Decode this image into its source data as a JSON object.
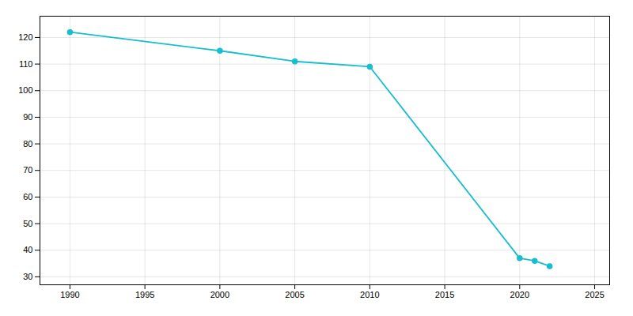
{
  "chart_data": {
    "type": "line",
    "x": [
      1990,
      2000,
      2005,
      2010,
      2020,
      2021,
      2022
    ],
    "values": [
      122,
      115,
      111,
      109,
      37,
      36,
      34
    ],
    "color": "#17becf",
    "marker": "circle",
    "xlim": [
      1988,
      2026
    ],
    "ylim": [
      27,
      128
    ],
    "xticks": [
      1990,
      1995,
      2000,
      2005,
      2010,
      2015,
      2020,
      2025
    ],
    "yticks": [
      30,
      40,
      50,
      60,
      70,
      80,
      90,
      100,
      110,
      120
    ],
    "grid": true
  }
}
